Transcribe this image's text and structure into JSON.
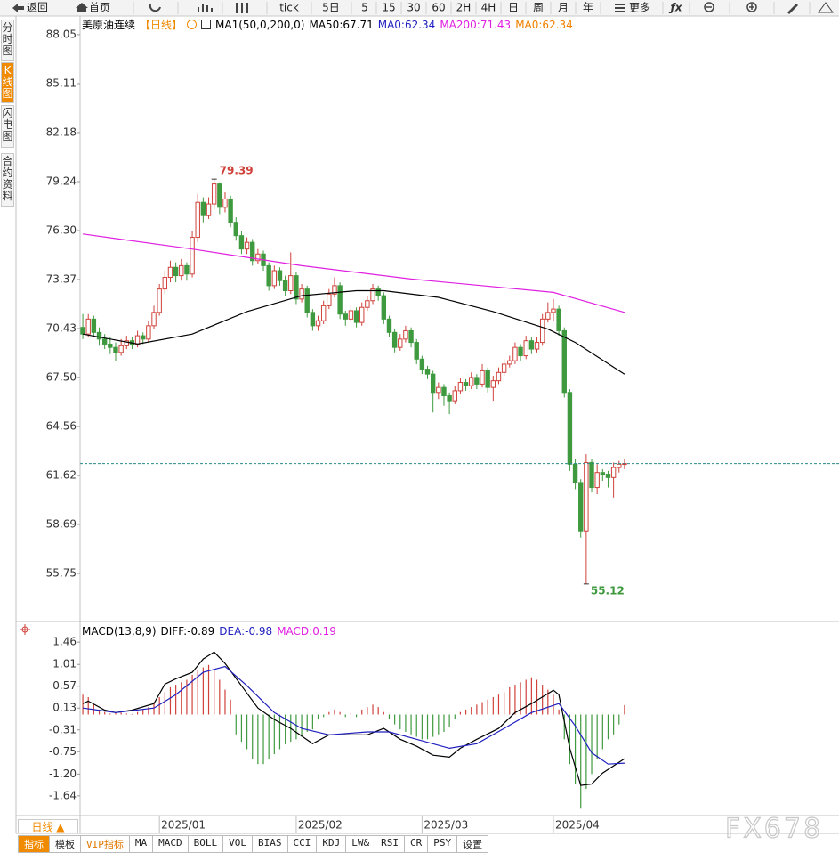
{
  "toolbar": [
    "返回",
    "首页",
    "tick",
    "5日",
    "5",
    "15",
    "30",
    "60",
    "2H",
    "4H",
    "日",
    "周",
    "月",
    "年",
    "更多"
  ],
  "side_tabs": [
    "分时图",
    "K线图",
    "闪电图",
    "合约资料"
  ],
  "period_button": "日线 ▲",
  "bottom_tabs": [
    "指标",
    "模板",
    "VIP指标",
    "MA",
    "MACD",
    "BOLL",
    "VOL",
    "BIAS",
    "CCI",
    "KDJ",
    "LW&",
    "RSI",
    "CR",
    "PSY",
    "设置"
  ],
  "watermark": "FX678",
  "chart_data": [
    {
      "type": "candlestick",
      "title": "美原油连续",
      "period": "【日线】",
      "legend": [
        {
          "name": "MA1(50,0,200,0)",
          "color": "#000000"
        },
        {
          "name": "MA50:67.71",
          "color": "#000000"
        },
        {
          "name": "MA0:62.34",
          "color": "#1f1fbf"
        },
        {
          "name": "MA200:71.43",
          "color": "#e020e0"
        },
        {
          "name": "MA0:62.34",
          "color": "#f08000"
        }
      ],
      "xlim": [
        -0.5,
        138.2
      ],
      "ylim": [
        53.03,
        89.06
      ],
      "yticks": [
        88.05,
        85.11,
        82.18,
        79.24,
        {
          "value": 76.3,
          "label": "76.30"
        },
        73.37,
        70.43,
        {
          "value": 67.5,
          "label": "67.50"
        },
        64.56,
        61.62,
        58.69,
        55.75
      ],
      "up_color": "#d0413a",
      "down_color": "#3f9a3f",
      "last_price_color": "#2a8a8a",
      "high_color": "#d0413a",
      "low_color": "#3f9a3f",
      "ohlc": [
        [
          70.5,
          71.3,
          69.8,
          70.1
        ],
        [
          70.1,
          71.3,
          69.9,
          71.0
        ],
        [
          71.0,
          71.2,
          70.0,
          70.2
        ],
        [
          70.2,
          70.5,
          69.4,
          69.8
        ],
        [
          69.8,
          70.1,
          69.2,
          69.5
        ],
        [
          69.5,
          69.9,
          68.9,
          69.3
        ],
        [
          69.3,
          69.6,
          68.5,
          69.0
        ],
        [
          69.0,
          69.8,
          68.8,
          69.4
        ],
        [
          69.4,
          70.0,
          69.2,
          69.7
        ],
        [
          69.7,
          69.9,
          69.2,
          69.5
        ],
        [
          69.5,
          70.3,
          69.3,
          70.0
        ],
        [
          70.0,
          70.2,
          69.5,
          69.8
        ],
        [
          69.8,
          70.9,
          69.6,
          70.6
        ],
        [
          70.6,
          71.8,
          70.4,
          71.4
        ],
        [
          71.4,
          73.1,
          71.2,
          72.8
        ],
        [
          72.8,
          73.9,
          72.5,
          73.5
        ],
        [
          73.5,
          74.5,
          73.2,
          74.1
        ],
        [
          74.1,
          74.4,
          73.2,
          73.6
        ],
        [
          73.6,
          74.6,
          73.3,
          74.2
        ],
        [
          74.2,
          74.4,
          73.3,
          73.7
        ],
        [
          73.7,
          76.3,
          73.5,
          75.9
        ],
        [
          75.9,
          78.5,
          75.6,
          78.0
        ],
        [
          78.0,
          78.3,
          76.8,
          77.2
        ],
        [
          77.2,
          78.3,
          77.0,
          77.9
        ],
        [
          77.9,
          79.39,
          77.6,
          79.1
        ],
        [
          79.1,
          79.2,
          77.3,
          77.7
        ],
        [
          77.7,
          78.6,
          77.4,
          78.2
        ],
        [
          78.2,
          78.4,
          76.5,
          76.8
        ],
        [
          76.8,
          77.1,
          75.7,
          76.0
        ],
        [
          76.0,
          76.3,
          74.9,
          75.2
        ],
        [
          75.2,
          75.9,
          74.9,
          75.6
        ],
        [
          75.6,
          75.8,
          74.2,
          74.5
        ],
        [
          74.5,
          75.2,
          74.3,
          74.9
        ],
        [
          74.9,
          75.1,
          73.9,
          74.2
        ],
        [
          74.2,
          74.4,
          72.7,
          73.0
        ],
        [
          73.0,
          74.2,
          72.8,
          73.9
        ],
        [
          73.9,
          74.1,
          73.0,
          73.3
        ],
        [
          73.3,
          73.6,
          72.4,
          72.7
        ],
        [
          72.7,
          75.0,
          72.5,
          73.6
        ],
        [
          73.6,
          73.8,
          71.9,
          72.2
        ],
        [
          72.2,
          73.1,
          72.0,
          72.8
        ],
        [
          72.8,
          73.0,
          71.1,
          71.4
        ],
        [
          71.4,
          71.6,
          70.3,
          70.6
        ],
        [
          70.6,
          71.2,
          70.3,
          70.9
        ],
        [
          70.9,
          72.1,
          70.7,
          71.8
        ],
        [
          71.8,
          72.8,
          71.6,
          72.5
        ],
        [
          72.5,
          73.5,
          72.3,
          73.0
        ],
        [
          73.0,
          73.2,
          71.0,
          71.3
        ],
        [
          71.3,
          71.5,
          70.6,
          71.0
        ],
        [
          71.0,
          71.8,
          70.8,
          71.5
        ],
        [
          71.5,
          71.7,
          70.5,
          70.8
        ],
        [
          70.8,
          72.0,
          70.6,
          71.7
        ],
        [
          71.7,
          72.4,
          71.5,
          72.1
        ],
        [
          72.1,
          73.1,
          71.9,
          72.8
        ],
        [
          72.8,
          73.0,
          72.1,
          72.4
        ],
        [
          72.4,
          72.6,
          70.7,
          71.0
        ],
        [
          71.0,
          71.2,
          69.9,
          70.2
        ],
        [
          70.2,
          70.4,
          69.0,
          69.3
        ],
        [
          69.3,
          70.1,
          69.1,
          69.8
        ],
        [
          69.8,
          70.6,
          69.6,
          70.3
        ],
        [
          70.3,
          70.5,
          69.3,
          69.6
        ],
        [
          69.6,
          69.8,
          68.3,
          68.6
        ],
        [
          68.6,
          68.8,
          67.7,
          68.0
        ],
        [
          68.0,
          68.2,
          67.4,
          67.7
        ],
        [
          67.7,
          67.9,
          65.4,
          66.6
        ],
        [
          66.6,
          67.2,
          66.2,
          66.9
        ],
        [
          66.9,
          67.1,
          65.8,
          66.4
        ],
        [
          66.4,
          66.6,
          65.3,
          66.1
        ],
        [
          66.1,
          67.0,
          65.9,
          66.7
        ],
        [
          66.7,
          67.5,
          66.5,
          67.2
        ],
        [
          67.2,
          67.4,
          66.7,
          67.0
        ],
        [
          67.0,
          67.8,
          66.8,
          67.5
        ],
        [
          67.5,
          67.7,
          66.8,
          67.1
        ],
        [
          67.1,
          68.3,
          66.9,
          67.9
        ],
        [
          67.9,
          68.1,
          66.6,
          66.9
        ],
        [
          66.9,
          67.6,
          66.1,
          67.3
        ],
        [
          67.3,
          68.1,
          67.1,
          67.8
        ],
        [
          67.8,
          68.6,
          67.6,
          68.3
        ],
        [
          68.3,
          68.8,
          68.1,
          68.5
        ],
        [
          68.5,
          69.6,
          68.3,
          69.3
        ],
        [
          69.3,
          69.5,
          68.5,
          68.8
        ],
        [
          68.8,
          70.0,
          68.6,
          69.7
        ],
        [
          69.7,
          69.9,
          68.9,
          69.2
        ],
        [
          69.2,
          69.9,
          69.0,
          69.6
        ],
        [
          69.6,
          71.3,
          69.4,
          71.0
        ],
        [
          71.0,
          72.0,
          70.8,
          71.4
        ],
        [
          71.4,
          72.2,
          70.9,
          71.6
        ],
        [
          71.6,
          71.8,
          70.0,
          70.3
        ],
        [
          70.3,
          70.5,
          66.3,
          66.6
        ],
        [
          66.6,
          66.8,
          61.9,
          62.3
        ],
        [
          62.3,
          62.6,
          60.8,
          61.2
        ],
        [
          61.2,
          61.4,
          57.9,
          58.3
        ],
        [
          58.3,
          62.9,
          55.12,
          62.4
        ],
        [
          62.4,
          62.6,
          60.6,
          60.9
        ],
        [
          60.9,
          62.3,
          60.5,
          61.8
        ],
        [
          61.8,
          62.0,
          61.3,
          61.7
        ],
        [
          61.7,
          61.9,
          60.9,
          61.5
        ],
        [
          61.5,
          62.4,
          60.3,
          62.1
        ],
        [
          62.1,
          62.5,
          61.8,
          62.3
        ],
        [
          62.3,
          62.6,
          62.0,
          62.34
        ]
      ],
      "lines": [
        {
          "color": "#000000",
          "x": [
            0,
            10,
            20,
            30,
            40,
            50,
            55,
            65,
            75,
            85,
            90,
            99
          ],
          "values": [
            70.1,
            69.5,
            70.1,
            71.45,
            72.4,
            72.7,
            72.7,
            72.3,
            71.45,
            70.4,
            69.6,
            67.7
          ]
        },
        {
          "color": "#e020e0",
          "x": [
            0,
            20,
            40,
            60,
            86,
            99
          ],
          "values": [
            76.1,
            75.2,
            74.2,
            73.4,
            72.6,
            71.4
          ]
        }
      ]
    },
    {
      "type": "macd",
      "title": "MACD(13,8,9)",
      "legend": [
        {
          "name": "DIFF:-0.89",
          "color": "#000000"
        },
        {
          "name": "DEA:-0.98",
          "color": "#1f1fbf"
        },
        {
          "name": "MACD:0.19",
          "color": "#e020e0"
        }
      ],
      "xlim": [
        -0.5,
        138.2
      ],
      "ylim": [
        -2.02,
        1.84
      ],
      "yticks": [
        1.46,
        1.01,
        0.57,
        0.13,
        -0.31,
        -0.75,
        {
          "value": -1.2,
          "label": "-1.20"
        },
        -1.64
      ],
      "xticks": [
        {
          "value": 14,
          "label": "2025/01"
        },
        {
          "value": 39,
          "label": "2025/02"
        },
        {
          "value": 62,
          "label": "2025/03"
        },
        {
          "value": 86,
          "label": "2025/04"
        }
      ],
      "up_color": "#d0413a",
      "down_color": "#3f9a3f",
      "histogram": [
        0.4,
        0.35,
        0.2,
        0.1,
        0.05,
        0.02,
        0.03,
        0.04,
        0.02,
        0.01,
        0.05,
        0.1,
        0.15,
        0.25,
        0.35,
        0.45,
        0.55,
        0.6,
        0.65,
        0.7,
        0.8,
        0.9,
        0.95,
        1.0,
        0.9,
        0.7,
        0.5,
        0.3,
        -0.4,
        -0.55,
        -0.7,
        -0.9,
        -1.0,
        -1.0,
        -0.9,
        -0.8,
        -0.7,
        -0.6,
        -0.55,
        -0.5,
        -0.45,
        -0.35,
        -0.3,
        -0.1,
        -0.05,
        0.05,
        0.1,
        0.05,
        -0.05,
        0.03,
        -0.05,
        0.1,
        0.15,
        0.2,
        0.15,
        0.05,
        -0.1,
        -0.2,
        -0.3,
        -0.35,
        -0.4,
        -0.45,
        -0.5,
        -0.5,
        -0.45,
        -0.4,
        -0.35,
        -0.25,
        -0.1,
        0.05,
        0.1,
        0.15,
        0.2,
        0.25,
        0.3,
        0.35,
        0.4,
        0.45,
        0.55,
        0.6,
        0.65,
        0.7,
        0.75,
        0.7,
        0.6,
        0.5,
        0.4,
        0.1,
        -0.5,
        -1.0,
        -1.4,
        -1.9,
        -1.5,
        -1.2,
        -0.9,
        -0.7,
        -0.5,
        -0.4,
        -0.2,
        0.19
      ],
      "lines": [
        {
          "color": "#000000",
          "x": [
            0,
            1,
            4,
            6,
            9,
            13,
            15,
            17,
            20,
            22,
            24,
            26,
            29,
            32,
            35,
            38,
            42,
            45,
            48,
            52,
            55,
            58,
            61,
            64,
            67,
            69,
            72,
            76,
            79,
            82,
            86,
            87,
            89,
            91,
            93,
            95,
            99
          ],
          "values": [
            0.22,
            0.27,
            0.09,
            0.04,
            0.09,
            0.22,
            0.61,
            0.72,
            0.85,
            1.12,
            1.26,
            1.03,
            0.58,
            0.13,
            -0.1,
            -0.28,
            -0.59,
            -0.41,
            -0.41,
            -0.41,
            -0.28,
            -0.5,
            -0.64,
            -0.82,
            -0.86,
            -0.68,
            -0.5,
            -0.28,
            0.04,
            0.22,
            0.49,
            0.4,
            -0.68,
            -1.43,
            -1.4,
            -1.18,
            -0.89
          ]
        },
        {
          "color": "#1f1fbf",
          "x": [
            0,
            6,
            13,
            17,
            22,
            26,
            30,
            35,
            40,
            45,
            52,
            56,
            61,
            67,
            72,
            77,
            82,
            87,
            90,
            93,
            96,
            99
          ],
          "values": [
            0.13,
            0.04,
            0.13,
            0.4,
            0.85,
            0.97,
            0.58,
            0.04,
            -0.28,
            -0.41,
            -0.35,
            -0.35,
            -0.5,
            -0.68,
            -0.59,
            -0.28,
            0.04,
            0.22,
            -0.23,
            -0.77,
            -1.0,
            -0.98
          ]
        }
      ]
    }
  ]
}
